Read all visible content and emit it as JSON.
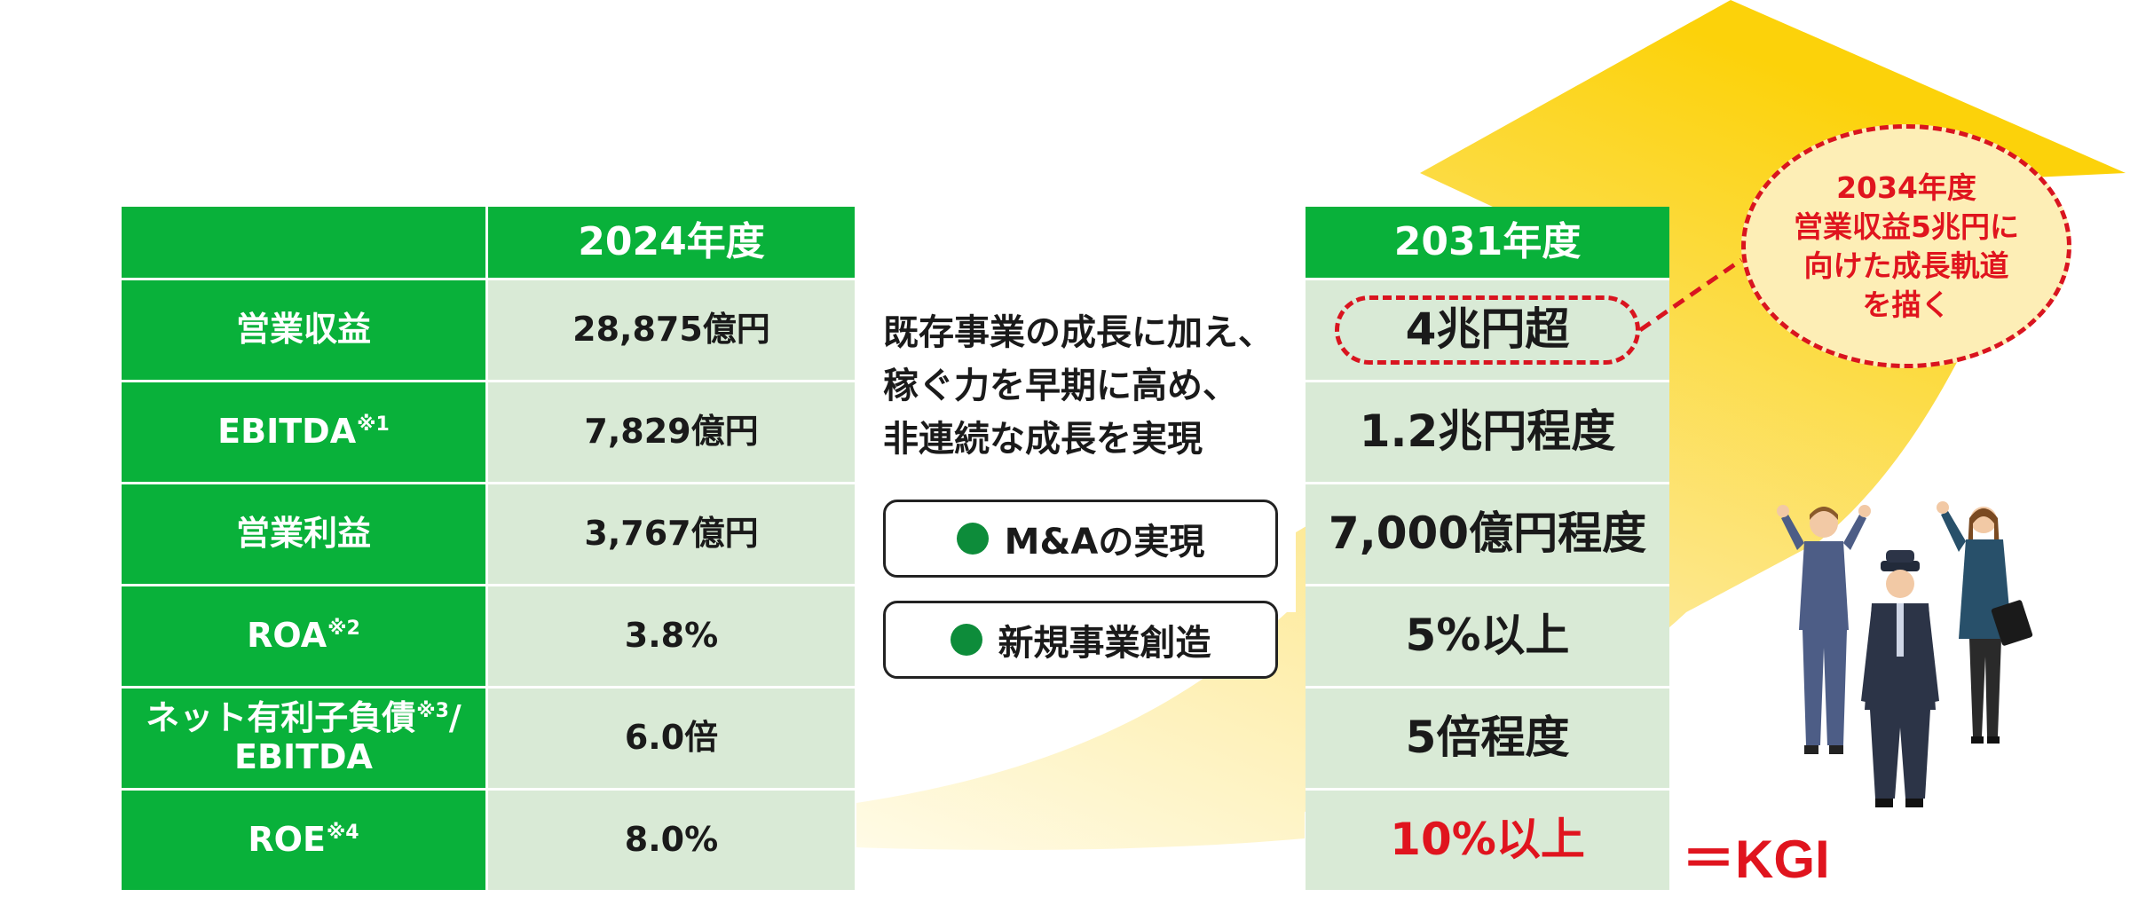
{
  "left_table": {
    "header_year": "2024年度",
    "rows": [
      {
        "label": "営業収益",
        "note": "",
        "label2": "",
        "value": "28,875億円"
      },
      {
        "label": "EBITDA",
        "note": "※1",
        "label2": "",
        "value": "7,829億円"
      },
      {
        "label": "営業利益",
        "note": "",
        "label2": "",
        "value": "3,767億円"
      },
      {
        "label": "ROA",
        "note": "※2",
        "label2": "",
        "value": "3.8%"
      },
      {
        "label": "ネット有利子負債",
        "note": "※3",
        "label2": "EBITDA",
        "value": "6.0倍",
        "sep": "/"
      },
      {
        "label": "ROE",
        "note": "※4",
        "label2": "",
        "value": "8.0%"
      }
    ]
  },
  "middle": {
    "lines": [
      "既存事業の成長に加え、",
      "稼ぐ力を早期に高め、",
      "非連続な成長を実現"
    ],
    "actions": [
      "M&Aの実現",
      "新規事業創造"
    ]
  },
  "right_table": {
    "header_year": "2031年度",
    "targets": [
      "4兆円超",
      "1.2兆円程度",
      "7,000億円程度",
      "5%以上",
      "5倍程度",
      "10%以上"
    ]
  },
  "callout": {
    "lines": [
      "2034年度",
      "営業収益5兆円に",
      "向けた成長軌道",
      "を描く"
    ]
  },
  "kgi_label": "＝KGI",
  "colors": {
    "header_green": "#09b13a",
    "value_bg": "#d9ead6",
    "accent_red": "#e0141e",
    "arrow_yellow": "#fcd20a",
    "dot_green": "#0d8c3a"
  },
  "illustration": [
    "staff-woman-figure",
    "conductor-figure",
    "businesswoman-figure"
  ]
}
